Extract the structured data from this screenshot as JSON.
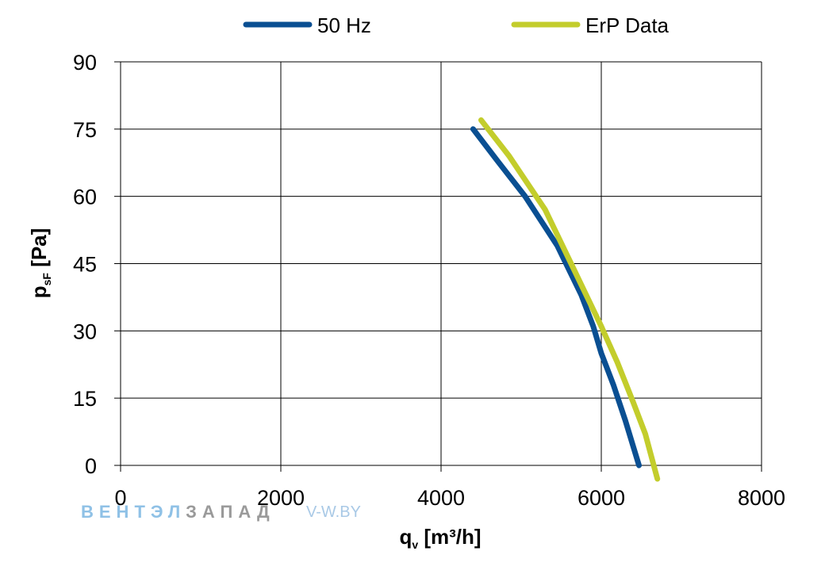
{
  "chart_data": {
    "type": "line",
    "title": "",
    "xlabel": {
      "main": "q",
      "sub": "v",
      "unit": " [m³/h]"
    },
    "ylabel": {
      "main": "p",
      "sub": "sF",
      "unit": " [Pa]"
    },
    "xlim": [
      0,
      8000
    ],
    "ylim": [
      0,
      90
    ],
    "xticks": [
      0,
      2000,
      4000,
      6000,
      8000
    ],
    "yticks": [
      0,
      15,
      30,
      45,
      60,
      75,
      90
    ],
    "grid": true,
    "legend_position": "top",
    "series": [
      {
        "name": "50 Hz",
        "color": "#0a4f92",
        "x": [
          4400,
          4700,
          5050,
          5450,
          5750,
          5900,
          6000,
          6150,
          6300,
          6470
        ],
        "y": [
          75,
          68,
          60,
          49,
          38,
          31,
          25,
          18,
          10,
          0
        ]
      },
      {
        "name": "ErP Data",
        "color": "#c3cd2c",
        "x": [
          4500,
          4850,
          5300,
          5650,
          6000,
          6200,
          6400,
          6550,
          6700
        ],
        "y": [
          77,
          69,
          57,
          44,
          31,
          23,
          14,
          7,
          -3
        ]
      }
    ]
  },
  "watermark": {
    "part1": "ВЕНТЭЛ",
    "part2": "ЗАПАД",
    "site": "V-W.BY"
  }
}
